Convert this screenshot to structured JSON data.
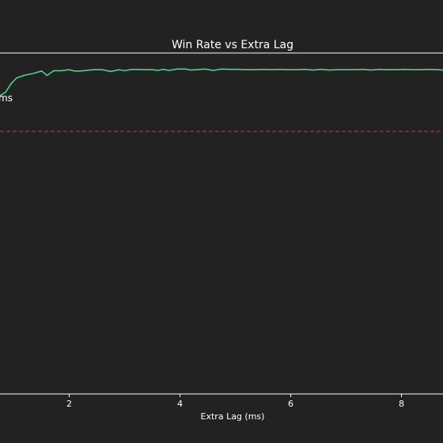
{
  "chart_data": {
    "type": "line",
    "title": "Win Rate vs Extra Lag",
    "xlabel": "Extra Lag (ms)",
    "ylabel": "",
    "x_ticks": [
      {
        "value": 2,
        "label": "2"
      },
      {
        "value": 4,
        "label": "4"
      },
      {
        "value": 6,
        "label": "6"
      },
      {
        "value": 8,
        "label": "8"
      }
    ],
    "xlim": [
      0.75,
      8.75
    ],
    "ylim": [
      0,
      100
    ],
    "grid": false,
    "reference_line": {
      "y": 77,
      "style": "dashed",
      "color": "#d81b60"
    },
    "annotation": {
      "text": "ms"
    },
    "series": [
      {
        "color": "#4fd18b",
        "x": [
          0.75,
          0.85,
          0.95,
          1.05,
          1.2,
          1.35,
          1.5,
          1.6,
          1.72,
          1.85,
          2.0,
          2.1,
          2.2,
          2.3,
          2.45,
          2.6,
          2.75,
          2.9,
          3.0,
          3.1,
          3.2,
          3.35,
          3.5,
          3.6,
          3.7,
          3.8,
          3.95,
          4.1,
          4.2,
          4.3,
          4.45,
          4.6,
          4.75,
          4.9,
          5.05,
          5.2,
          5.35,
          5.5,
          5.65,
          5.8,
          5.95,
          6.1,
          6.25,
          6.4,
          6.55,
          6.7,
          6.85,
          7.0,
          7.15,
          7.3,
          7.45,
          7.6,
          7.75,
          7.9,
          8.05,
          8.2,
          8.35,
          8.5,
          8.65,
          8.75
        ],
        "y": [
          87.5,
          88.5,
          91.0,
          92.7,
          93.5,
          94.0,
          94.7,
          93.4,
          94.8,
          94.8,
          95.1,
          94.7,
          94.7,
          94.9,
          95.1,
          95.1,
          94.6,
          95.1,
          94.8,
          95.1,
          95.2,
          95.1,
          95.1,
          94.9,
          95.2,
          94.9,
          95.3,
          95.3,
          95.0,
          95.1,
          95.3,
          94.9,
          95.3,
          95.2,
          95.2,
          95.1,
          95.1,
          95.2,
          95.1,
          95.2,
          95.1,
          95.1,
          95.2,
          95.0,
          95.2,
          95.0,
          95.1,
          95.1,
          95.1,
          95.2,
          95.0,
          95.2,
          95.1,
          95.1,
          95.2,
          95.1,
          95.1,
          95.2,
          95.1,
          95.0
        ]
      }
    ]
  }
}
